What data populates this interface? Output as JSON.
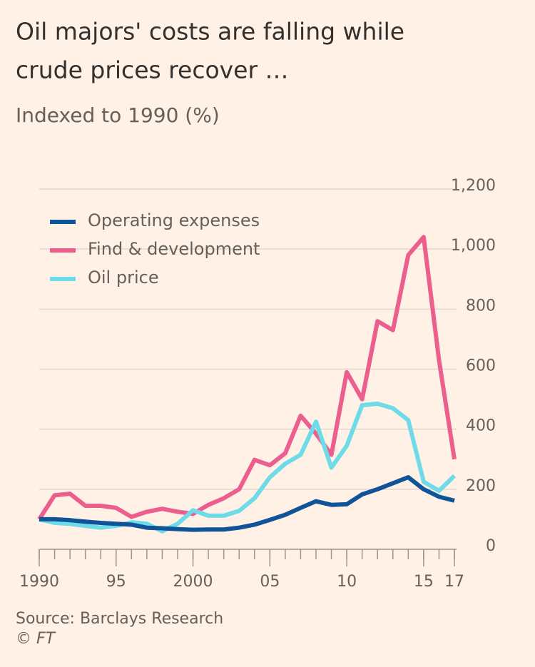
{
  "chart_data": {
    "type": "line",
    "title": [
      "Oil majors' costs are falling while",
      "crude prices recover …"
    ],
    "subtitle": "Indexed to 1990 (%)",
    "source": "Source: Barclays Research",
    "copyright": "© FT",
    "x": [
      1990,
      1991,
      1992,
      1993,
      1994,
      1995,
      1996,
      1997,
      1998,
      1999,
      2000,
      2001,
      2002,
      2003,
      2004,
      2005,
      2006,
      2007,
      2008,
      2009,
      2010,
      2011,
      2012,
      2013,
      2014,
      2015,
      2016,
      2017
    ],
    "series": [
      {
        "name": "Operating expenses",
        "color": "#0f5499",
        "values": [
          100,
          100,
          97,
          92,
          88,
          85,
          82,
          72,
          70,
          67,
          65,
          66,
          66,
          72,
          82,
          98,
          115,
          138,
          160,
          148,
          150,
          183,
          200,
          220,
          240,
          200,
          175,
          162
        ]
      },
      {
        "name": "Find & development",
        "color": "#eb5e8d",
        "values": [
          100,
          180,
          185,
          145,
          145,
          138,
          108,
          125,
          135,
          125,
          118,
          148,
          170,
          200,
          298,
          280,
          320,
          445,
          385,
          315,
          590,
          500,
          760,
          730,
          980,
          1040,
          630,
          300
        ]
      },
      {
        "name": "Oil price",
        "color": "#6ddbe8",
        "values": [
          100,
          88,
          85,
          78,
          72,
          78,
          90,
          85,
          60,
          85,
          130,
          112,
          112,
          128,
          170,
          240,
          285,
          315,
          425,
          272,
          345,
          480,
          485,
          470,
          430,
          225,
          195,
          245
        ]
      }
    ],
    "xlim": [
      1990,
      2017
    ],
    "xticks": [
      1990,
      {
        "value": 1995,
        "label": "95"
      },
      2000,
      {
        "value": 2005,
        "label": "05"
      },
      {
        "value": 2010,
        "label": "10"
      },
      {
        "value": 2015,
        "label": "15"
      },
      {
        "value": 2017,
        "label": "17"
      }
    ],
    "ylim": [
      0,
      1200
    ],
    "yticks": [
      0,
      200,
      400,
      600,
      800,
      {
        "value": 1000,
        "label": "1,000"
      },
      {
        "value": 1200,
        "label": "1,200"
      }
    ],
    "grid": true,
    "legend": "top-left"
  }
}
